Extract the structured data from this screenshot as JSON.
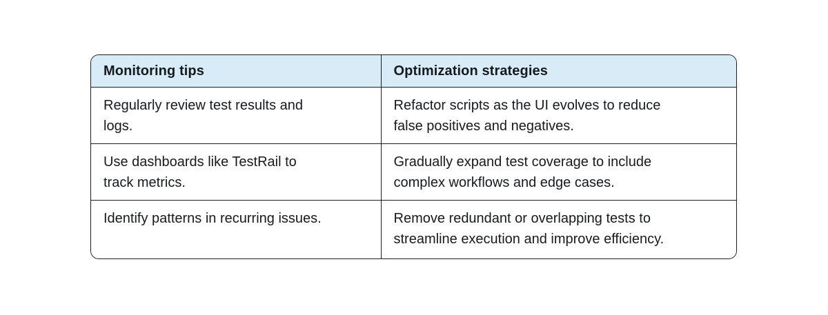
{
  "table": {
    "columns": [
      {
        "label": "Monitoring tips"
      },
      {
        "label": "Optimization strategies"
      }
    ],
    "rows": [
      {
        "monitoring_tip": "Regularly review test results and\nlogs.",
        "optimization_strategy": "Refactor scripts as the UI evolves to reduce\nfalse positives and negatives."
      },
      {
        "monitoring_tip": "Use dashboards like TestRail to\ntrack metrics.",
        "optimization_strategy": "Gradually expand test coverage to include\ncomplex workflows and edge cases."
      },
      {
        "monitoring_tip": "Identify patterns in recurring issues.",
        "optimization_strategy": "Remove redundant or overlapping tests to\nstreamline execution and improve efficiency."
      }
    ],
    "colors": {
      "header_background": "#d7ecf6",
      "border": "#1b1d21",
      "text": "#16191e",
      "page_background": "#ffffff"
    }
  }
}
